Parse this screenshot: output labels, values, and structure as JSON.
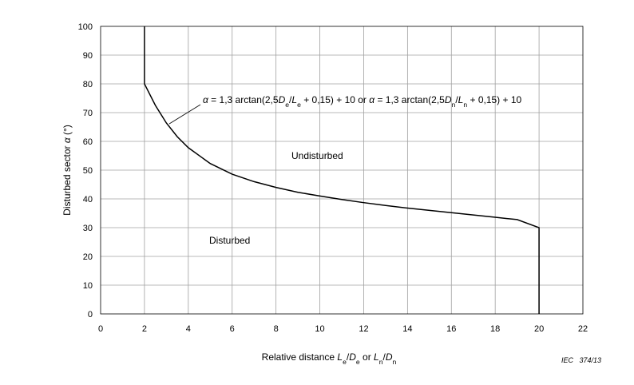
{
  "chart_data": {
    "type": "line",
    "title": "",
    "xlabel": {
      "runs": [
        {
          "t": "Relative distance "
        },
        {
          "t": "L",
          "i": true
        },
        {
          "t": "e",
          "sub": true
        },
        {
          "t": "/"
        },
        {
          "t": "D",
          "i": true
        },
        {
          "t": "e",
          "sub": true
        },
        {
          "t": " or "
        },
        {
          "t": "L",
          "i": true
        },
        {
          "t": "n",
          "sub": true
        },
        {
          "t": "/"
        },
        {
          "t": "D",
          "i": true
        },
        {
          "t": "n",
          "sub": true
        }
      ]
    },
    "ylabel": {
      "runs": [
        {
          "t": "Disturbed sector "
        },
        {
          "t": "α",
          "i": true
        },
        {
          "t": " (°)"
        }
      ]
    },
    "xlim": [
      0,
      22
    ],
    "ylim": [
      0,
      100
    ],
    "xticks": [
      0,
      2,
      4,
      6,
      8,
      10,
      12,
      14,
      16,
      18,
      20,
      22
    ],
    "yticks": [
      0,
      10,
      20,
      30,
      40,
      50,
      60,
      70,
      80,
      90,
      100
    ],
    "grid": true,
    "series": [
      {
        "x": [
          2,
          2,
          2.5,
          3,
          3.5,
          4,
          5,
          6,
          7,
          8,
          9,
          10,
          11,
          12,
          13,
          14,
          15,
          16,
          17,
          18,
          19,
          20,
          20
        ],
        "y": [
          100,
          80,
          72.5,
          66.4,
          61.6,
          57.8,
          52.3,
          48.6,
          46,
          44,
          42.3,
          41,
          39.8,
          38.7,
          37.7,
          36.8,
          36,
          35.2,
          34.4,
          33.6,
          32.8,
          30,
          0
        ]
      }
    ],
    "annotations": [
      {
        "name": "formula",
        "runs": [
          {
            "t": "α",
            "i": true
          },
          {
            "t": " = 1,3 arctan(2,5"
          },
          {
            "t": "D",
            "i": true
          },
          {
            "t": "e",
            "sub": true
          },
          {
            "t": "/"
          },
          {
            "t": "L",
            "i": true
          },
          {
            "t": "e",
            "sub": true
          },
          {
            "t": " + 0,15) + 10 or "
          },
          {
            "t": "α",
            "i": true
          },
          {
            "t": " = 1,3 arctan(2,5"
          },
          {
            "t": "D",
            "i": true
          },
          {
            "t": "n",
            "sub": true
          },
          {
            "t": "/"
          },
          {
            "t": "L",
            "i": true
          },
          {
            "t": "n",
            "sub": true
          },
          {
            "t": " + 0,15) + 10"
          }
        ]
      },
      {
        "name": "undisturbed",
        "runs": [
          {
            "t": "Undisturbed"
          }
        ]
      },
      {
        "name": "disturbed",
        "runs": [
          {
            "t": "Disturbed"
          }
        ]
      }
    ],
    "figure_id": "IEC   374/13"
  }
}
